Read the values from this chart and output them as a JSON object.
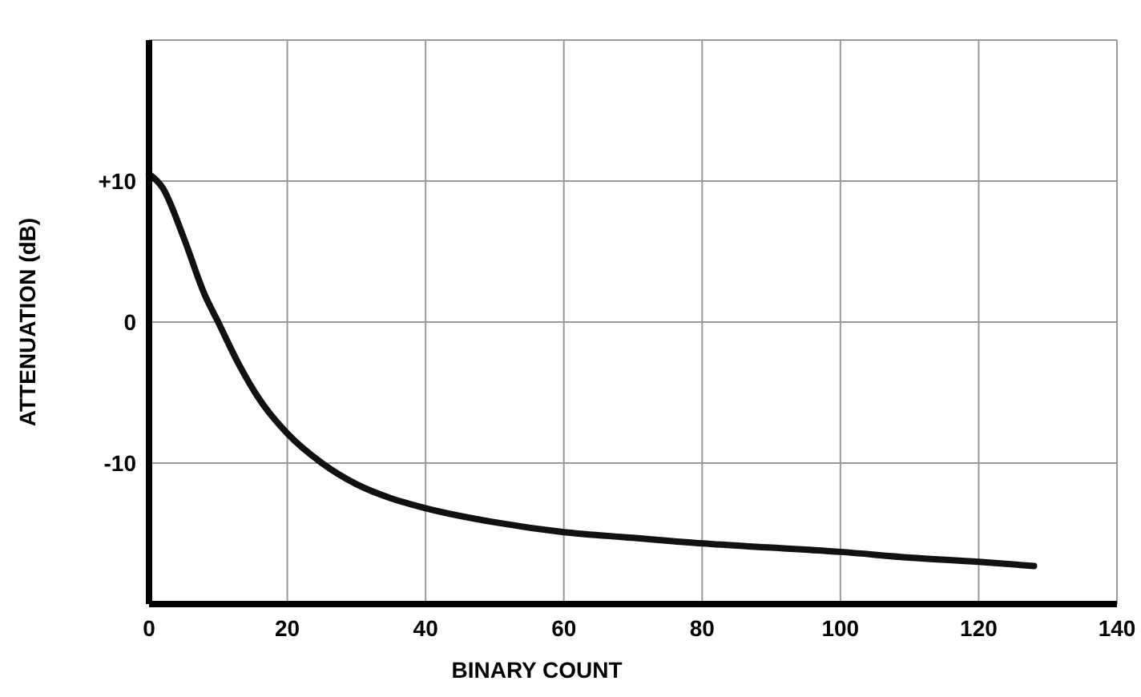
{
  "chart_data": {
    "type": "line",
    "xlabel": "BINARY COUNT",
    "ylabel": "ATTENUATION (dB)",
    "x": [
      0,
      2,
      5,
      8,
      10,
      13,
      16,
      20,
      25,
      30,
      35,
      40,
      50,
      60,
      70,
      80,
      90,
      100,
      110,
      120,
      128
    ],
    "series": [
      {
        "color": "#111111",
        "values": [
          10.5,
          9.5,
          6,
          2,
          0,
          -3,
          -5.5,
          -7.9,
          -10,
          -11.5,
          -12.5,
          -13.2,
          -14.2,
          -14.9,
          -15.3,
          -15.7,
          -16,
          -16.3,
          -16.7,
          -17,
          -17.3
        ]
      }
    ],
    "xlim": [
      0,
      140
    ],
    "xticks": [
      0,
      20,
      40,
      60,
      80,
      100,
      120,
      140
    ],
    "ylim": [
      -20,
      20
    ],
    "yticks": [
      {
        "value": -20,
        "label": null
      },
      -10,
      0,
      {
        "value": 10,
        "label": "+10"
      },
      {
        "value": 20,
        "label": null
      }
    ],
    "grid": true,
    "marker": "none",
    "line_style": "solid"
  }
}
